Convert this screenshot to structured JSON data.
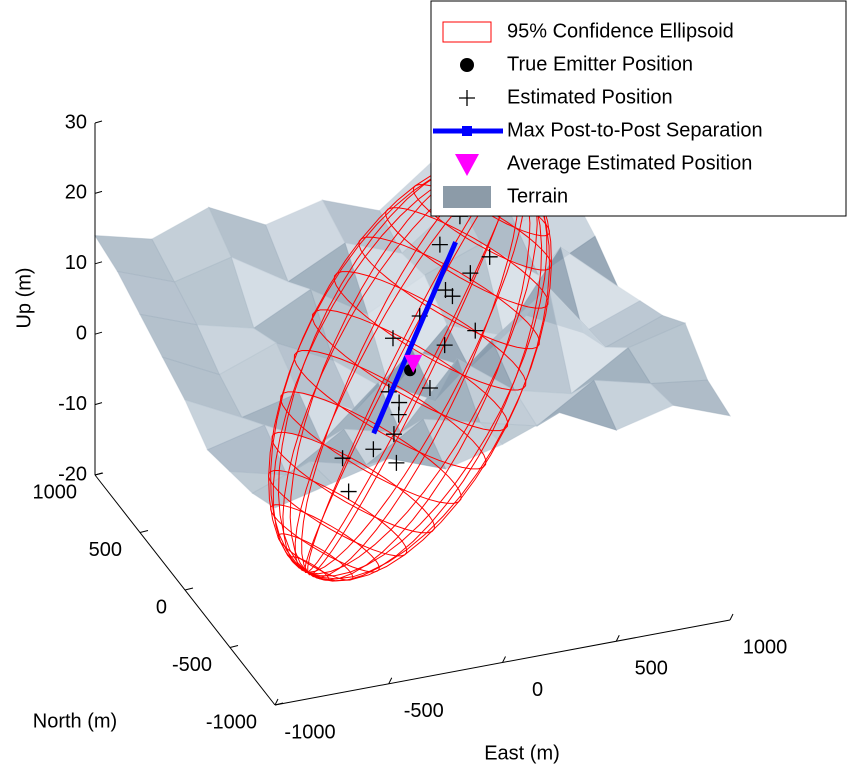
{
  "chart_data": {
    "type": "scatter3d",
    "xlabel": "East (m)",
    "ylabel": "North (m)",
    "zlabel": "Up (m)",
    "xlim": [
      -1000,
      1000
    ],
    "ylim": [
      -1000,
      1000
    ],
    "zlim": [
      -20,
      30
    ],
    "xticks": [
      -1000,
      -500,
      0,
      500,
      1000
    ],
    "yticks": [
      -1000,
      -500,
      0,
      500,
      1000
    ],
    "zticks": [
      -20,
      -10,
      0,
      10,
      20,
      30
    ],
    "legend": "top-right",
    "series": [
      {
        "name": "95% Confidence Ellipsoid",
        "color": "#ff0000",
        "center": [
          100,
          280,
          0
        ],
        "axes": [
          [
            450,
            0,
            26
          ],
          [
            400,
            0,
            -8
          ],
          [
            0,
            400,
            0
          ]
        ]
      },
      {
        "name": "True Emitter Position",
        "color": "#000000",
        "x": [
          100
        ],
        "y": [
          280
        ],
        "z": [
          0
        ]
      },
      {
        "name": "Estimated Position",
        "color": "#000000",
        "x": [
          365,
          335,
          355,
          50,
          -165,
          25,
          240,
          45,
          450,
          190,
          -25,
          460,
          40,
          318,
          140,
          -170,
          247,
          52,
          268,
          -77
        ],
        "y": [
          280,
          320,
          200,
          280,
          360,
          280,
          240,
          320,
          280,
          400,
          200,
          280,
          280,
          360,
          160,
          280,
          320,
          280,
          320,
          240
        ],
        "z": [
          12.2,
          19.8,
          5.4,
          -6,
          -12.2,
          5,
          11.2,
          -9.4,
          14,
          5.2,
          -1,
          20.8,
          -12.8,
          7.9,
          -0.8,
          -15.6,
          16.3,
          -4.3,
          1.9,
          -9.5
        ]
      },
      {
        "name": "Max Post-to-Post Separation",
        "color": "#0000ff",
        "x": [
          -60,
          300
        ],
        "y": [
          280,
          280
        ],
        "z": [
          -8,
          17
        ]
      },
      {
        "name": "Average Estimated Position",
        "color": "#ff00ff",
        "x": [
          110
        ],
        "y": [
          270
        ],
        "z": [
          1
        ]
      },
      {
        "name": "Terrain",
        "color": "#8c9ba8",
        "x": [
          -1000,
          -750,
          -500,
          -250,
          0,
          250,
          500,
          750,
          1000
        ],
        "y": [
          -1000,
          -750,
          -500,
          -250,
          0,
          250,
          500,
          750,
          1000
        ],
        "z": [
          [
            8,
            10,
            12,
            9,
            11,
            14,
            10,
            12,
            9
          ],
          [
            6,
            9,
            7,
            12,
            10,
            8,
            13,
            11,
            10
          ],
          [
            5,
            3,
            8,
            6,
            15,
            9,
            7,
            12,
            14
          ],
          [
            4,
            6,
            2,
            9,
            5,
            12,
            18,
            8,
            11
          ],
          [
            7,
            3,
            5,
            1,
            8,
            4,
            10,
            6,
            9
          ],
          [
            9,
            5,
            8,
            4,
            -2,
            6,
            3,
            14,
            7
          ],
          [
            11,
            8,
            6,
            10,
            5,
            9,
            12,
            6,
            10
          ],
          [
            13,
            10,
            12,
            7,
            11,
            8,
            14,
            9,
            12
          ],
          [
            14,
            12,
            15,
            11,
            13,
            10,
            16,
            12,
            15
          ]
        ]
      }
    ]
  }
}
